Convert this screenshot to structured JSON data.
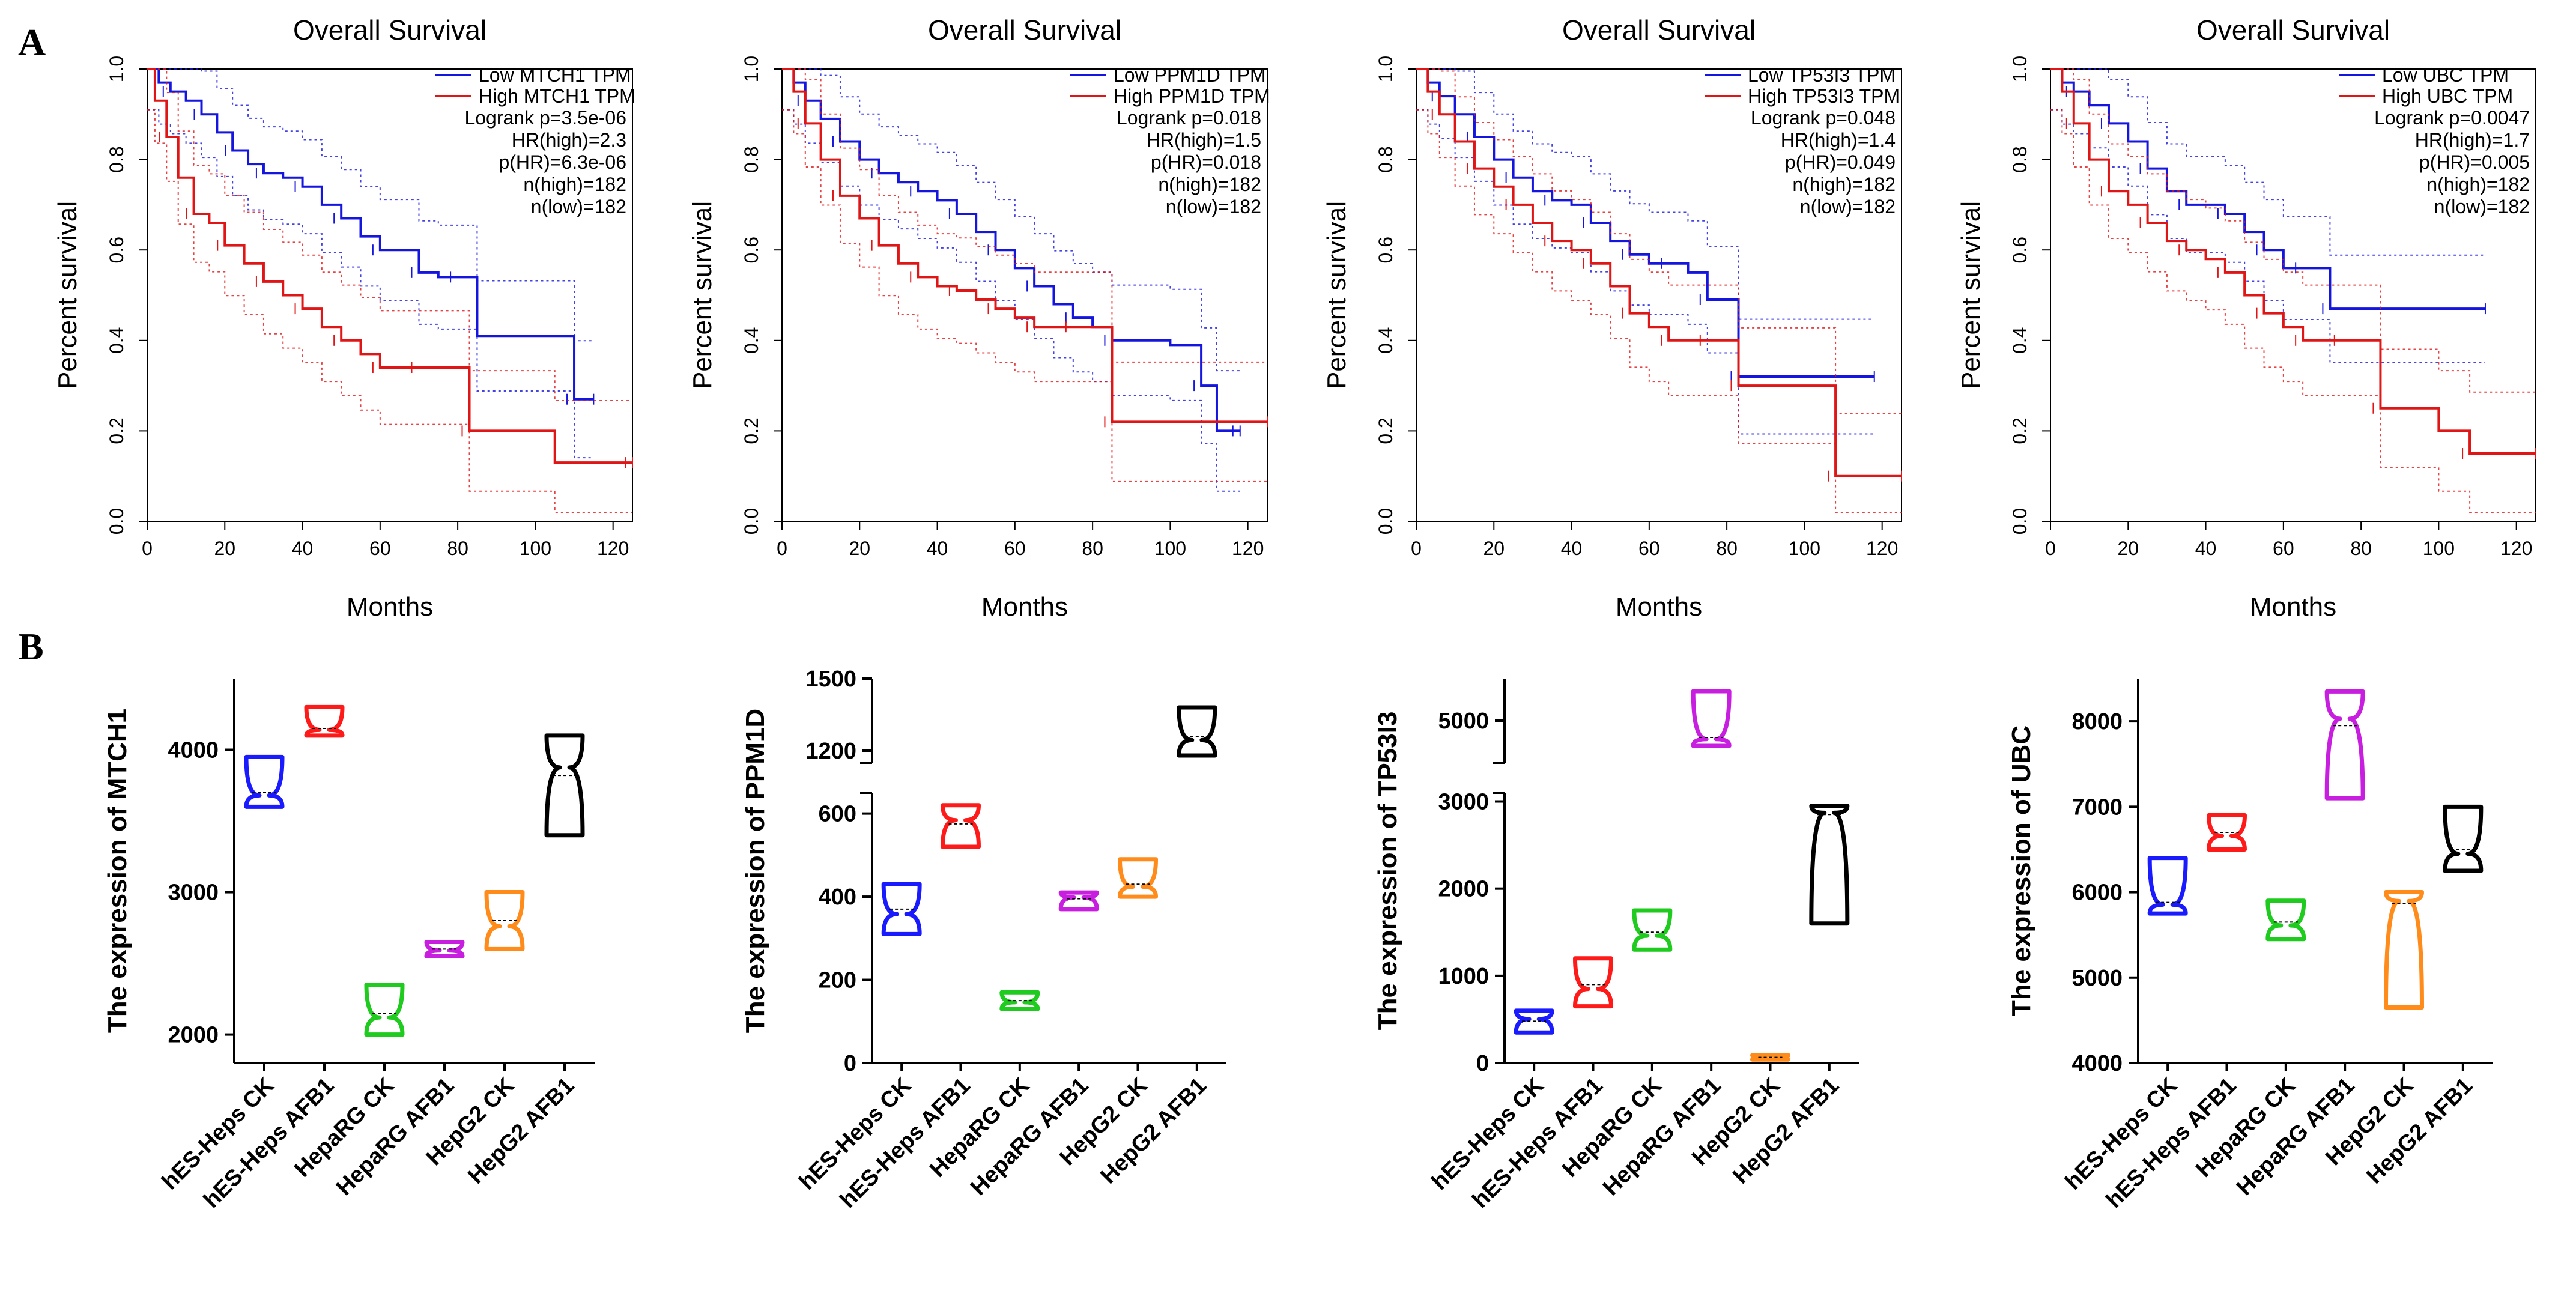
{
  "panel_labels": [
    "A",
    "B"
  ],
  "chart_data": [
    {
      "type": "line",
      "subtype": "kaplan-meier",
      "title": "Overall Survival",
      "xlabel": "Months",
      "ylabel": "Percent survival",
      "xlim": [
        0,
        125
      ],
      "ylim": [
        0,
        1
      ],
      "xticks": [
        0,
        20,
        40,
        60,
        80,
        100,
        120
      ],
      "yticks": [
        0.0,
        0.2,
        0.4,
        0.6,
        0.8,
        1.0
      ],
      "stats": [
        "Logrank p=3.5e-06",
        "HR(high)=2.3",
        "p(HR)=6.3e-06",
        "n(high)=182",
        "n(low)=182"
      ],
      "series": [
        {
          "name": "Low MTCH1 TPM",
          "color": "#1515e0",
          "x": [
            0,
            3,
            6,
            10,
            14,
            18,
            22,
            26,
            30,
            35,
            40,
            45,
            50,
            55,
            60,
            65,
            70,
            75,
            80,
            85,
            110,
            115
          ],
          "y": [
            1.0,
            0.97,
            0.95,
            0.93,
            0.9,
            0.86,
            0.82,
            0.79,
            0.77,
            0.76,
            0.74,
            0.7,
            0.67,
            0.63,
            0.6,
            0.6,
            0.55,
            0.54,
            0.54,
            0.41,
            0.27,
            0.27
          ]
        },
        {
          "name": "High MTCH1 TPM",
          "color": "#e01515",
          "x": [
            0,
            2,
            5,
            8,
            12,
            16,
            20,
            25,
            30,
            35,
            40,
            45,
            50,
            55,
            60,
            65,
            70,
            75,
            83,
            105,
            125
          ],
          "y": [
            1.0,
            0.93,
            0.85,
            0.76,
            0.68,
            0.66,
            0.61,
            0.57,
            0.53,
            0.5,
            0.47,
            0.43,
            0.4,
            0.37,
            0.34,
            0.34,
            0.34,
            0.34,
            0.2,
            0.13,
            0.13
          ]
        }
      ]
    },
    {
      "type": "line",
      "subtype": "kaplan-meier",
      "title": "Overall Survival",
      "xlabel": "Months",
      "ylabel": "Percent survival",
      "xlim": [
        0,
        125
      ],
      "ylim": [
        0,
        1
      ],
      "xticks": [
        0,
        20,
        40,
        60,
        80,
        100,
        120
      ],
      "yticks": [
        0.0,
        0.2,
        0.4,
        0.6,
        0.8,
        1.0
      ],
      "stats": [
        "Logrank p=0.018",
        "HR(high)=1.5",
        "p(HR)=0.018",
        "n(high)=182",
        "n(low)=182"
      ],
      "series": [
        {
          "name": "Low PPM1D TPM",
          "color": "#1515e0",
          "x": [
            0,
            3,
            6,
            10,
            15,
            20,
            25,
            30,
            35,
            40,
            45,
            50,
            55,
            60,
            65,
            70,
            75,
            80,
            85,
            100,
            108,
            112,
            118
          ],
          "y": [
            1.0,
            0.97,
            0.93,
            0.89,
            0.84,
            0.8,
            0.77,
            0.75,
            0.73,
            0.71,
            0.68,
            0.64,
            0.6,
            0.56,
            0.52,
            0.48,
            0.45,
            0.43,
            0.4,
            0.39,
            0.3,
            0.2,
            0.2
          ]
        },
        {
          "name": "High PPM1D TPM",
          "color": "#e01515",
          "x": [
            0,
            3,
            6,
            10,
            15,
            20,
            25,
            30,
            35,
            40,
            45,
            50,
            55,
            60,
            65,
            70,
            75,
            80,
            85,
            125
          ],
          "y": [
            1.0,
            0.95,
            0.88,
            0.8,
            0.72,
            0.67,
            0.61,
            0.57,
            0.54,
            0.52,
            0.51,
            0.49,
            0.47,
            0.45,
            0.43,
            0.43,
            0.43,
            0.43,
            0.22,
            0.22
          ]
        }
      ]
    },
    {
      "type": "line",
      "subtype": "kaplan-meier",
      "title": "Overall Survival",
      "xlabel": "Months",
      "ylabel": "Percent survival",
      "xlim": [
        0,
        125
      ],
      "ylim": [
        0,
        1
      ],
      "xticks": [
        0,
        20,
        40,
        60,
        80,
        100,
        120
      ],
      "yticks": [
        0.0,
        0.2,
        0.4,
        0.6,
        0.8,
        1.0
      ],
      "stats": [
        "Logrank p=0.048",
        "HR(high)=1.4",
        "p(HR)=0.049",
        "n(high)=182",
        "n(low)=182"
      ],
      "series": [
        {
          "name": "Low TP53I3 TPM",
          "color": "#1515e0",
          "x": [
            0,
            3,
            6,
            10,
            15,
            20,
            25,
            30,
            35,
            40,
            45,
            50,
            55,
            60,
            65,
            70,
            75,
            80,
            83,
            118
          ],
          "y": [
            1.0,
            0.97,
            0.94,
            0.9,
            0.85,
            0.8,
            0.76,
            0.73,
            0.71,
            0.7,
            0.66,
            0.62,
            0.59,
            0.57,
            0.57,
            0.55,
            0.49,
            0.49,
            0.32,
            0.32
          ]
        },
        {
          "name": "High TP53I3 TPM",
          "color": "#e01515",
          "x": [
            0,
            3,
            6,
            10,
            15,
            20,
            25,
            30,
            35,
            40,
            45,
            50,
            55,
            60,
            65,
            70,
            75,
            80,
            83,
            100,
            108,
            125
          ],
          "y": [
            1.0,
            0.95,
            0.9,
            0.84,
            0.78,
            0.74,
            0.7,
            0.66,
            0.62,
            0.6,
            0.57,
            0.52,
            0.46,
            0.43,
            0.4,
            0.4,
            0.4,
            0.4,
            0.3,
            0.3,
            0.1,
            0.1
          ]
        }
      ]
    },
    {
      "type": "line",
      "subtype": "kaplan-meier",
      "title": "Overall Survival",
      "xlabel": "Months",
      "ylabel": "Percent survival",
      "xlim": [
        0,
        125
      ],
      "ylim": [
        0,
        1
      ],
      "xticks": [
        0,
        20,
        40,
        60,
        80,
        100,
        120
      ],
      "yticks": [
        0.0,
        0.2,
        0.4,
        0.6,
        0.8,
        1.0
      ],
      "stats": [
        "Logrank p=0.0047",
        "HR(high)=1.7",
        "p(HR)=0.005",
        "n(high)=182",
        "n(low)=182"
      ],
      "series": [
        {
          "name": "Low UBC TPM",
          "color": "#1515e0",
          "x": [
            0,
            3,
            6,
            10,
            15,
            20,
            25,
            30,
            35,
            40,
            45,
            50,
            55,
            60,
            65,
            70,
            72,
            112
          ],
          "y": [
            1.0,
            0.97,
            0.95,
            0.92,
            0.88,
            0.84,
            0.78,
            0.73,
            0.7,
            0.7,
            0.68,
            0.64,
            0.6,
            0.56,
            0.56,
            0.56,
            0.47,
            0.47
          ]
        },
        {
          "name": "High UBC TPM",
          "color": "#e01515",
          "x": [
            0,
            3,
            6,
            10,
            15,
            20,
            25,
            30,
            35,
            40,
            45,
            50,
            55,
            60,
            65,
            70,
            75,
            80,
            85,
            100,
            108,
            125
          ],
          "y": [
            1.0,
            0.95,
            0.88,
            0.8,
            0.73,
            0.7,
            0.66,
            0.62,
            0.6,
            0.58,
            0.55,
            0.5,
            0.46,
            0.43,
            0.4,
            0.4,
            0.4,
            0.4,
            0.25,
            0.2,
            0.15,
            0.15
          ]
        }
      ]
    },
    {
      "type": "violin",
      "ylabel": "The expression of MTCH1",
      "categories": [
        "hES-Heps  CK",
        "hES-Heps  AFB1",
        "HepaRG  CK",
        "HepaRG  AFB1",
        "HepG2  CK",
        "HepG2  AFB1"
      ],
      "colors": [
        "#1a1aff",
        "#ff1a1a",
        "#1ecb1e",
        "#c81ee0",
        "#ff8c1a",
        "#000000"
      ],
      "ylim": [
        1800,
        4500
      ],
      "yticks": [
        2000,
        3000,
        4000
      ],
      "ranges": [
        [
          3600,
          3950
        ],
        [
          4100,
          4300
        ],
        [
          2000,
          2350
        ],
        [
          2550,
          2650
        ],
        [
          2600,
          3000
        ],
        [
          3400,
          4100
        ]
      ],
      "medians": [
        3700,
        4150,
        2150,
        2600,
        2800,
        3820
      ]
    },
    {
      "type": "violin",
      "ylabel": "The expression of PPM1D",
      "categories": [
        "hES-Heps  CK",
        "hES-Heps  AFB1",
        "HepaRG  CK",
        "HepaRG  AFB1",
        "HepG2  CK",
        "HepG2  AFB1"
      ],
      "colors": [
        "#1a1aff",
        "#ff1a1a",
        "#1ecb1e",
        "#c81ee0",
        "#ff8c1a",
        "#000000"
      ],
      "axis_break": [
        650,
        1150
      ],
      "ylim_lower": [
        0,
        650
      ],
      "ylim_upper": [
        1150,
        1500
      ],
      "yticks": [
        0,
        200,
        400,
        600,
        1200,
        1500
      ],
      "ranges": [
        [
          310,
          430
        ],
        [
          520,
          620
        ],
        [
          130,
          170
        ],
        [
          370,
          410
        ],
        [
          400,
          490
        ],
        [
          1180,
          1380
        ]
      ],
      "medians": [
        370,
        575,
        150,
        395,
        430,
        1260
      ]
    },
    {
      "type": "violin",
      "ylabel": "The expression of TP53I3",
      "categories": [
        "hES-Heps  CK",
        "hES-Heps  AFB1",
        "HepaRG  CK",
        "HepaRG  AFB1",
        "HepG2  CK",
        "HepG2  AFB1"
      ],
      "colors": [
        "#1a1aff",
        "#ff1a1a",
        "#1ecb1e",
        "#c81ee0",
        "#ff8c1a",
        "#000000"
      ],
      "axis_break": [
        3000,
        4500
      ],
      "ylim_lower": [
        0,
        3100
      ],
      "ylim_upper": [
        4500,
        5500
      ],
      "yticks": [
        0,
        1000,
        2000,
        3000,
        5000
      ],
      "ranges": [
        [
          350,
          600
        ],
        [
          650,
          1200
        ],
        [
          1300,
          1750
        ],
        [
          4700,
          5350
        ],
        [
          40,
          90
        ],
        [
          1600,
          2950
        ]
      ],
      "medians": [
        480,
        900,
        1500,
        4800,
        65,
        2850
      ]
    },
    {
      "type": "violin",
      "ylabel": "The expression of UBC",
      "categories": [
        "hES-Heps  CK",
        "hES-Heps  AFB1",
        "HepaRG  CK",
        "HepaRG  AFB1",
        "HepG2  CK",
        "HepG2  AFB1"
      ],
      "colors": [
        "#1a1aff",
        "#ff1a1a",
        "#1ecb1e",
        "#c81ee0",
        "#ff8c1a",
        "#000000"
      ],
      "ylim": [
        4000,
        8500
      ],
      "yticks": [
        4000,
        5000,
        6000,
        7000,
        8000
      ],
      "ranges": [
        [
          5750,
          6400
        ],
        [
          6500,
          6900
        ],
        [
          5450,
          5900
        ],
        [
          7100,
          8350
        ],
        [
          4650,
          6000
        ],
        [
          6250,
          7000
        ]
      ],
      "medians": [
        5880,
        6700,
        5650,
        7950,
        5870,
        6500
      ]
    }
  ]
}
